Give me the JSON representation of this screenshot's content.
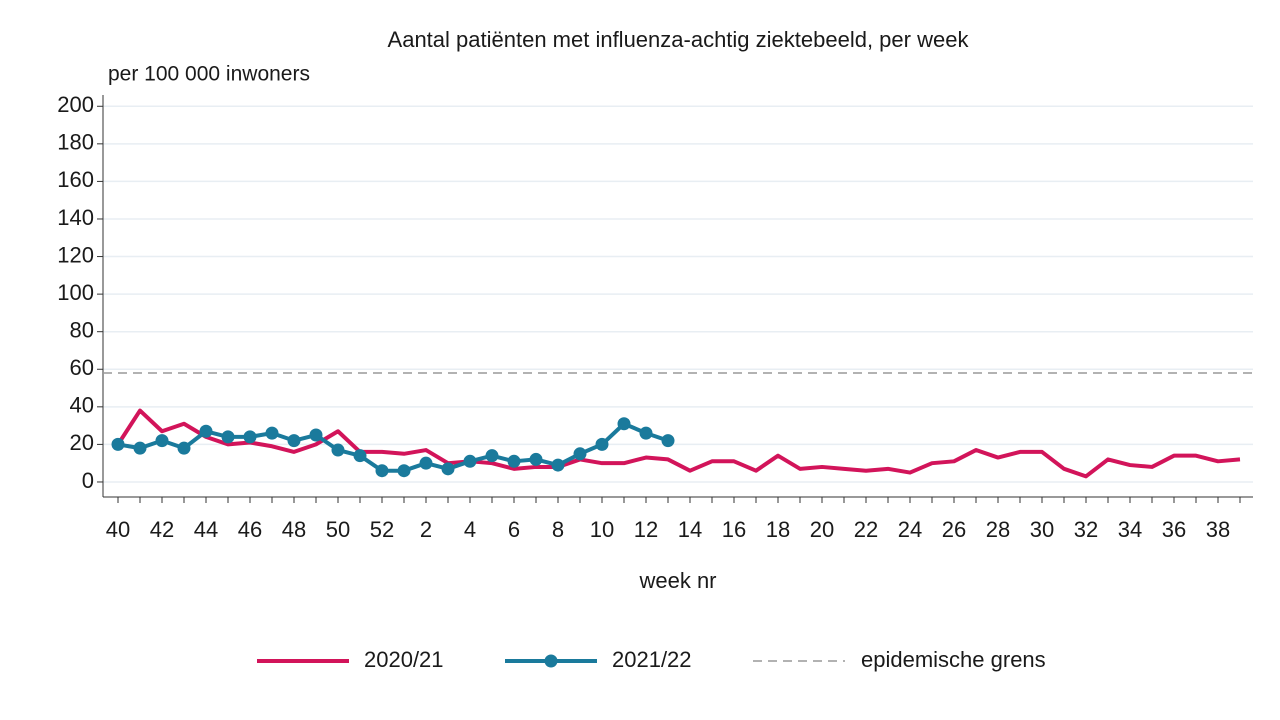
{
  "chart_data": {
    "type": "line",
    "title": "Aantal patiënten met influenza-achtig ziektebeeld, per week",
    "y_label": "per 100 000 inwoners",
    "x_label": "week nr",
    "categories": [
      40,
      null,
      42,
      null,
      44,
      null,
      46,
      null,
      48,
      null,
      50,
      null,
      52,
      null,
      2,
      null,
      4,
      null,
      6,
      null,
      8,
      null,
      10,
      null,
      12,
      null,
      14,
      null,
      16,
      null,
      18,
      null,
      20,
      null,
      22,
      null,
      24,
      null,
      26,
      null,
      28,
      null,
      30,
      null,
      32,
      null,
      34,
      null,
      36,
      null,
      38,
      null
    ],
    "series": [
      {
        "name": "2020/21",
        "color": "#d2145a",
        "markers": false,
        "values": [
          20,
          38,
          27,
          31,
          24,
          20,
          21,
          19,
          16,
          20,
          27,
          16,
          16,
          15,
          17,
          10,
          11,
          10,
          7,
          8,
          8,
          12,
          10,
          10,
          13,
          12,
          6,
          11,
          11,
          6,
          14,
          7,
          8,
          7,
          6,
          7,
          5,
          10,
          11,
          17,
          13,
          16,
          16,
          7,
          3,
          12,
          9,
          8,
          14,
          14,
          11,
          12
        ]
      },
      {
        "name": "2021/22",
        "color": "#1a7a9c",
        "markers": true,
        "values": [
          20,
          18,
          22,
          18,
          27,
          24,
          24,
          26,
          22,
          25,
          17,
          14,
          6,
          6,
          10,
          7,
          11,
          14,
          11,
          12,
          9,
          15,
          20,
          31,
          26,
          22,
          null,
          null,
          null,
          null,
          null,
          null,
          null,
          null,
          null,
          null,
          null,
          null,
          null,
          null,
          null,
          null,
          null,
          null,
          null,
          null,
          null,
          null,
          null,
          null,
          null,
          null
        ]
      }
    ],
    "threshold": {
      "name": "epidemische grens",
      "value": 58,
      "color": "#999999"
    },
    "ylim": [
      -8,
      206
    ],
    "yticks": [
      0,
      20,
      40,
      60,
      80,
      100,
      120,
      140,
      160,
      180,
      200
    ],
    "grid": true
  }
}
